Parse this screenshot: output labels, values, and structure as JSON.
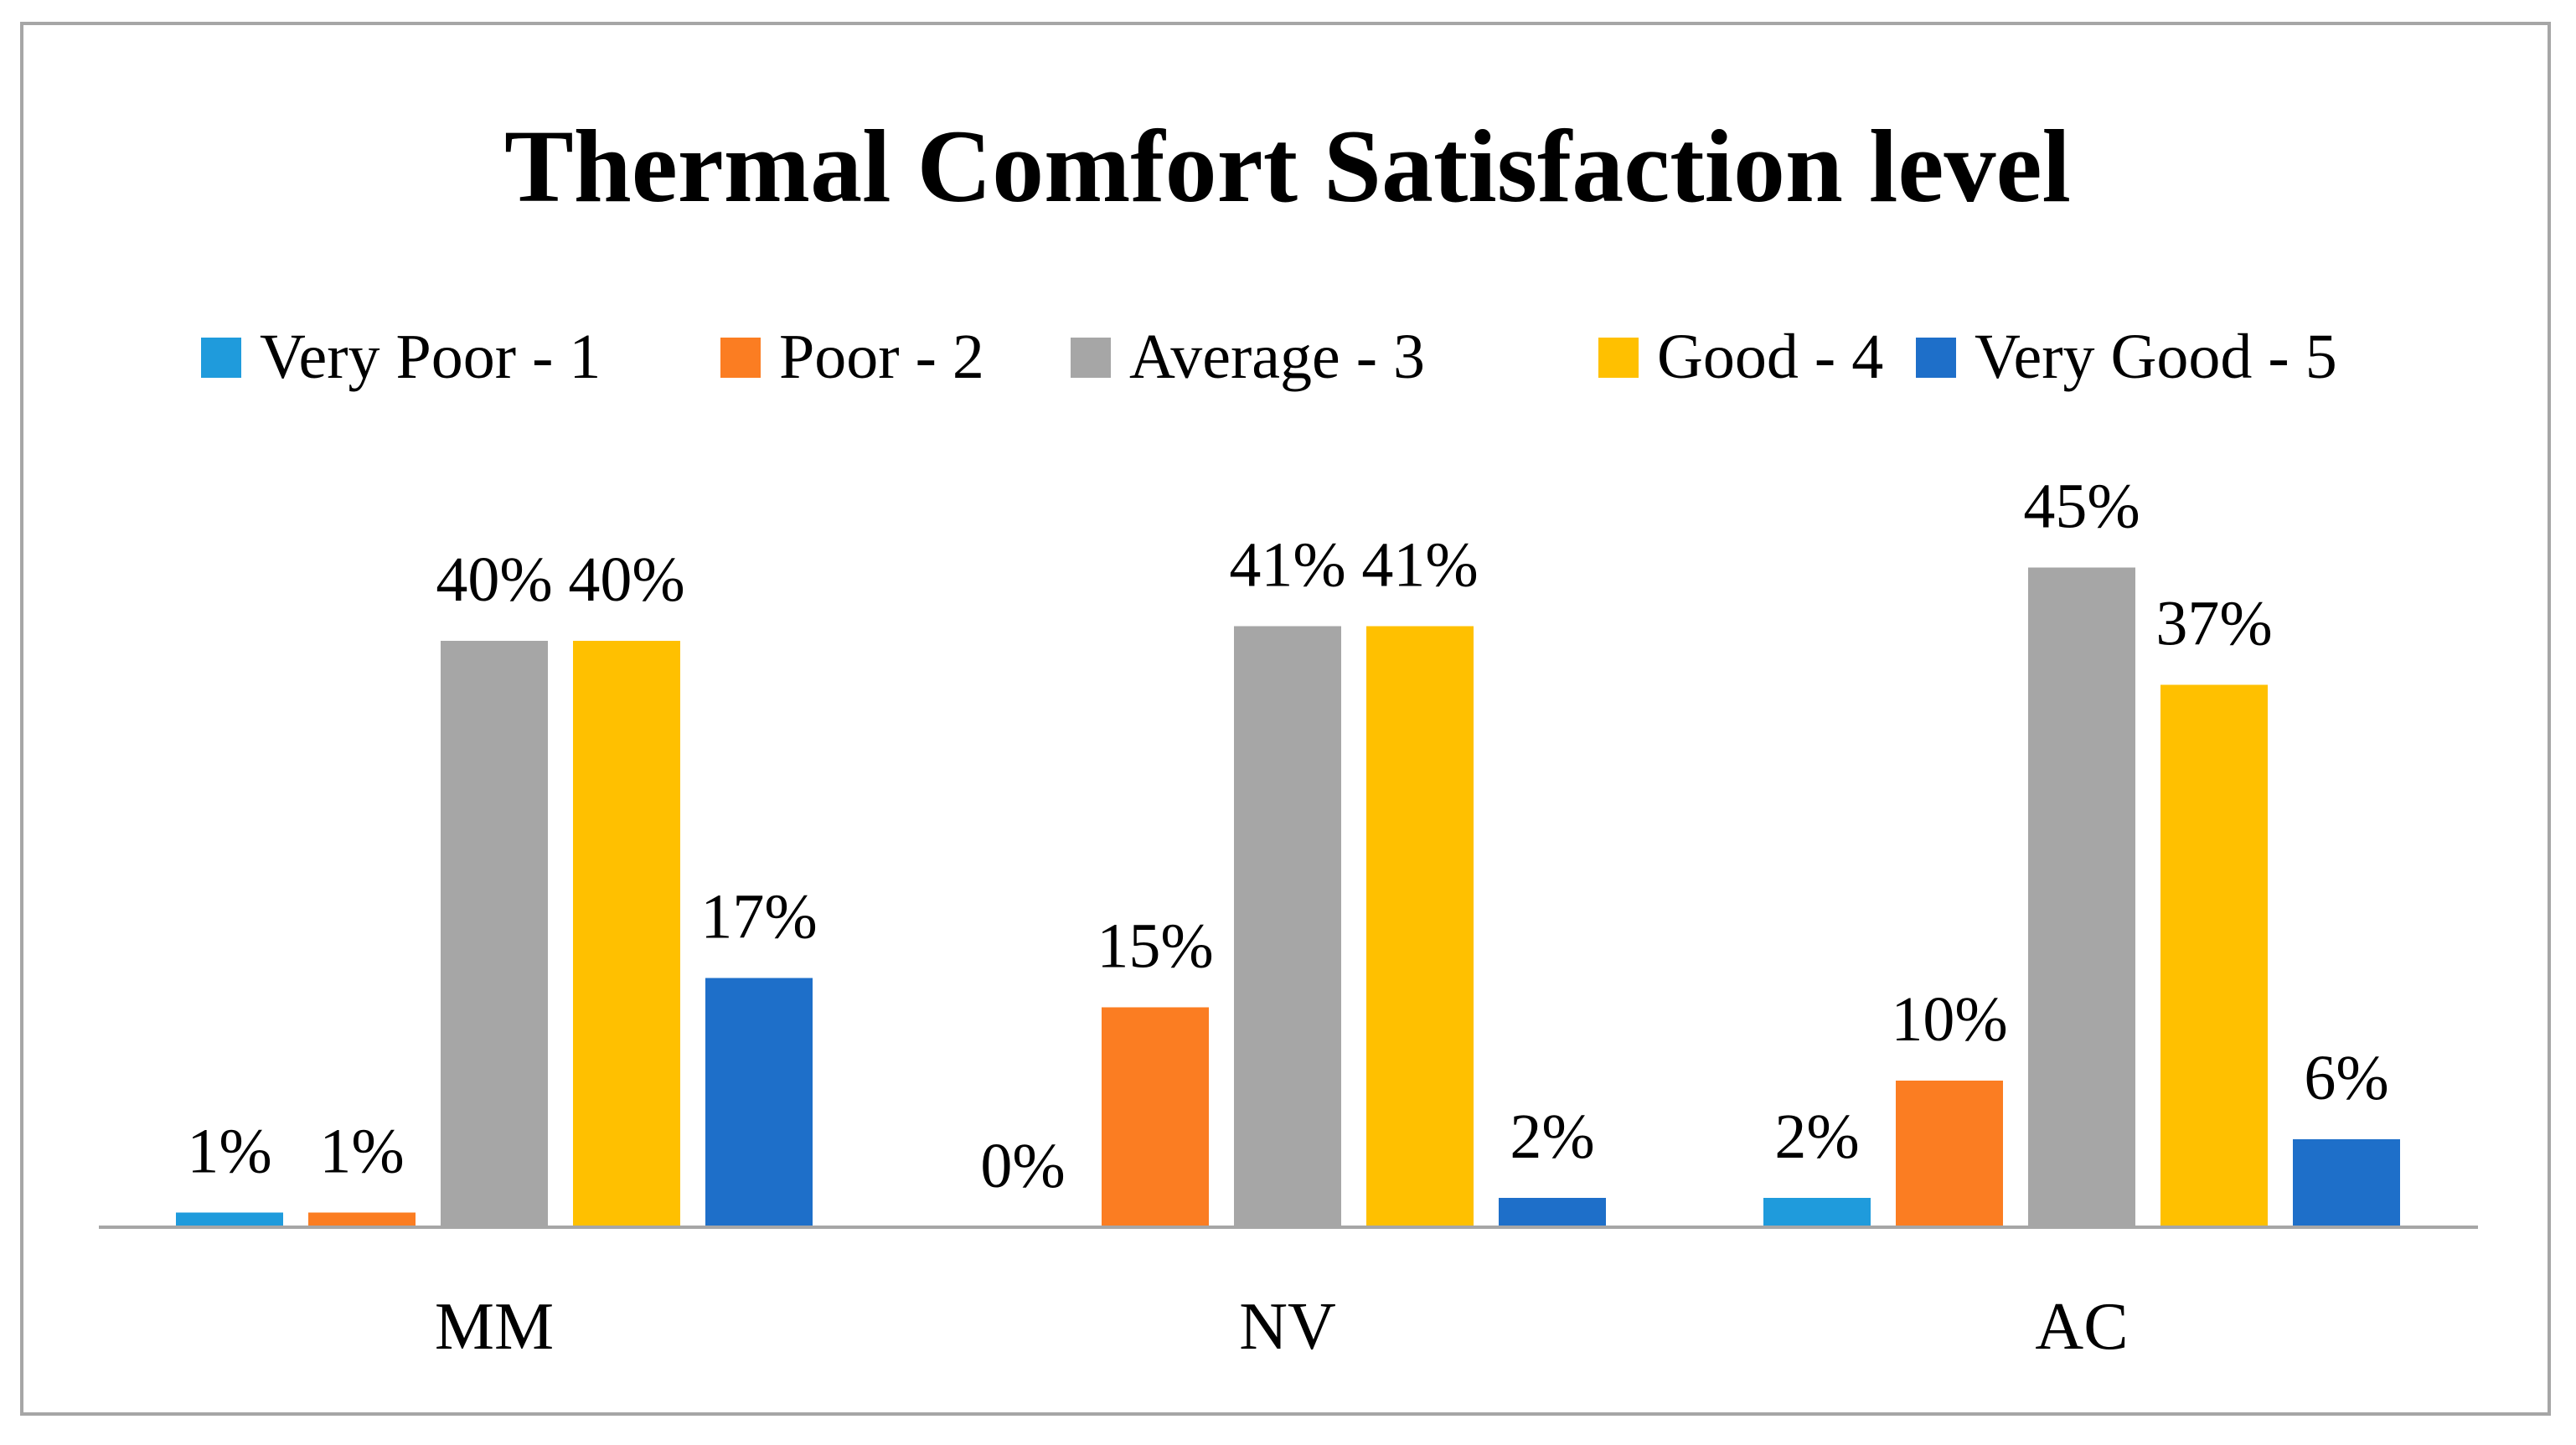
{
  "chart_data": {
    "type": "bar",
    "title": "Thermal Comfort Satisfaction level",
    "xlabel": "",
    "ylabel": "",
    "ylim": [
      0,
      50
    ],
    "legend_position": "top",
    "grid": false,
    "categories": [
      "MM",
      "NV",
      "AC"
    ],
    "series": [
      {
        "name": "Very Poor - 1",
        "color": "#1f9bdc",
        "values": [
          1,
          0,
          2
        ],
        "labels": [
          "1%",
          "0%",
          "2%"
        ]
      },
      {
        "name": "Poor - 2",
        "color": "#fb7d22",
        "values": [
          1,
          15,
          10
        ],
        "labels": [
          "1%",
          "15%",
          "10%"
        ]
      },
      {
        "name": "Average - 3",
        "color": "#a6a6a6",
        "values": [
          40,
          41,
          45
        ],
        "labels": [
          "40%",
          "41%",
          "45%"
        ]
      },
      {
        "name": "Good - 4",
        "color": "#ffc000",
        "values": [
          40,
          41,
          37
        ],
        "labels": [
          "40%",
          "41%",
          "37%"
        ]
      },
      {
        "name": "Very Good - 5",
        "color": "#1e6fc9",
        "values": [
          17,
          2,
          6
        ],
        "labels": [
          "17%",
          "2%",
          "6%"
        ]
      }
    ]
  }
}
